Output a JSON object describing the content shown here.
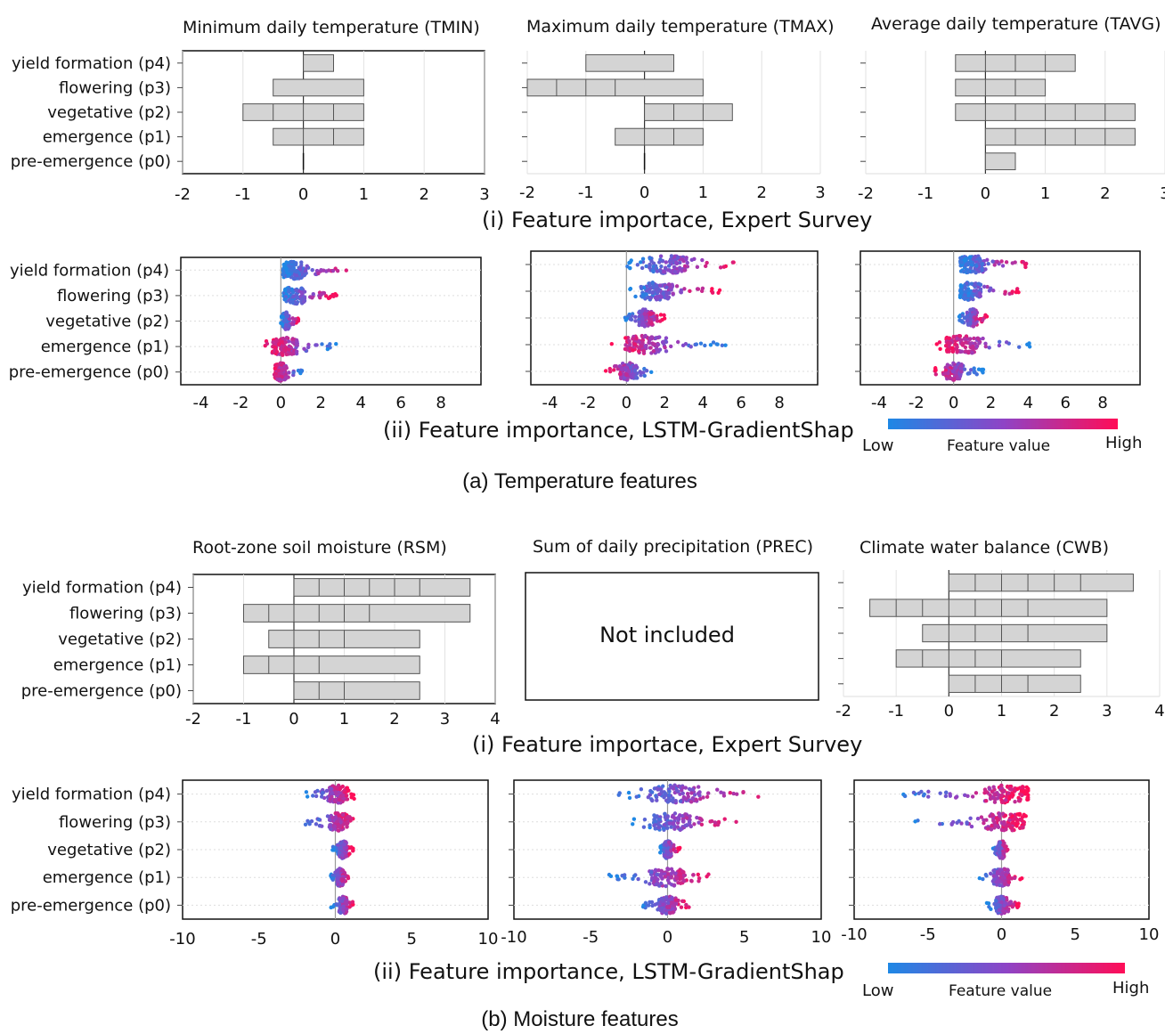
{
  "figure": {
    "sections": [
      {
        "label": "(a) Temperature features",
        "survey_caption": "(i)  Feature importace, Expert Survey",
        "gradient_caption": "(ii)  Feature importance, LSTM-GradientShap",
        "colorbar": {
          "low": "Low",
          "mid": "Feature value",
          "high": "High"
        }
      },
      {
        "label": "(b) Moisture features",
        "survey_caption": "(i)  Feature importace, Expert Survey",
        "gradient_caption": "(ii)  Feature importance, LSTM-GradientShap",
        "colorbar": {
          "low": "Low",
          "mid": "Feature value",
          "high": "High"
        }
      }
    ],
    "categories": [
      "yield formation (p4)",
      "flowering (p3)",
      "vegetative (p2)",
      "emergence (p1)",
      "pre-emergence (p0)"
    ],
    "colors": {
      "low": "#1e88e5",
      "mid": "#8e44c6",
      "high": "#ff0d57",
      "bar": "#d4d4d4"
    }
  },
  "chart_data": [
    {
      "id": "tmin_survey",
      "type": "bar",
      "title": "Minimum daily temperature (TMIN)",
      "xlim": [
        -2,
        3
      ],
      "xticks": [
        -2,
        -1,
        0,
        1,
        2,
        3
      ],
      "series": [
        {
          "values": [
            [
              0,
              0.5
            ],
            [
              -0.5,
              1
            ],
            [
              -1,
              1
            ],
            [
              -0.5,
              1
            ],
            [
              0,
              0
            ]
          ],
          "segments": [
            [
              0.5
            ],
            [
              0.5
            ],
            [
              0.5,
              0.5,
              0.5,
              0.5
            ],
            [
              0.5,
              0.5,
              0.5
            ],
            [
              0
            ]
          ]
        }
      ]
    },
    {
      "id": "tmax_survey",
      "type": "bar",
      "title": "Maximum daily temperature (TMAX)",
      "xlim": [
        -2,
        3
      ],
      "xticks": [
        -2,
        -1,
        0,
        1,
        2,
        3
      ],
      "series": [
        {
          "values": [
            [
              -1,
              0.5
            ],
            [
              -2,
              1
            ],
            [
              0,
              1.5
            ],
            [
              -0.5,
              1
            ],
            [
              0,
              0
            ]
          ],
          "segments": [
            [
              1.5
            ],
            [
              0.5,
              0.5,
              0.5,
              1.5
            ],
            [
              0.5,
              0.5,
              0.5
            ],
            [
              0.5,
              0.5,
              0.5
            ],
            [
              0
            ]
          ]
        }
      ]
    },
    {
      "id": "tavg_survey",
      "type": "bar",
      "title": "Average daily temperature (TAVG)",
      "xlim": [
        -2,
        3
      ],
      "xticks": [
        -2,
        -1,
        0,
        1,
        2,
        3
      ],
      "series": [
        {
          "values": [
            [
              -0.5,
              1.5
            ],
            [
              -0.5,
              1
            ],
            [
              -0.5,
              2.5
            ],
            [
              0,
              2.5
            ],
            [
              0,
              0.5
            ]
          ],
          "segments": [
            [
              0.5,
              0.5,
              0.5,
              0.5
            ],
            [
              0.5,
              0.5,
              0.5
            ],
            [
              0.5,
              0.5,
              0.5,
              0.5,
              0.5,
              0.5
            ],
            [
              0.5,
              0.5,
              0.5,
              0.5,
              0.5
            ],
            [
              0.5
            ]
          ]
        }
      ]
    },
    {
      "id": "tmin_shap",
      "type": "scatter",
      "title": "",
      "xlim": [
        -5,
        10
      ],
      "xticks": [
        -4,
        -2,
        0,
        2,
        4,
        6,
        8
      ],
      "series": [
        {
          "values": [
            [
              0,
              3.5,
              0.7
            ],
            [
              0,
              2.8,
              0.7
            ],
            [
              0,
              0.9,
              0.25
            ],
            [
              -0.8,
              2.8,
              0.2
            ],
            [
              -0.5,
              1.2,
              0.0
            ]
          ]
        }
      ]
    },
    {
      "id": "tmax_shap",
      "type": "scatter",
      "title": "",
      "xlim": [
        -5,
        10
      ],
      "xticks": [
        -4,
        -2,
        0,
        2,
        4,
        6,
        8
      ],
      "series": [
        {
          "values": [
            [
              0,
              5.7,
              2.2
            ],
            [
              0,
              4.9,
              1.6
            ],
            [
              -0.1,
              2.0,
              1.0
            ],
            [
              -1.0,
              5.3,
              1.0
            ],
            [
              -1.2,
              1.5,
              0.1
            ]
          ]
        }
      ]
    },
    {
      "id": "tavg_shap",
      "type": "scatter",
      "title": "",
      "xlim": [
        -5,
        10
      ],
      "xticks": [
        -4,
        -2,
        0,
        2,
        4,
        6,
        8
      ],
      "series": [
        {
          "values": [
            [
              0.3,
              4.0,
              1.0
            ],
            [
              0.3,
              3.5,
              0.9
            ],
            [
              0.3,
              1.8,
              1.0
            ],
            [
              -1.0,
              4.2,
              0.5
            ],
            [
              -1.0,
              1.6,
              0.0
            ]
          ]
        }
      ]
    },
    {
      "id": "rsm_survey",
      "type": "bar",
      "title": "Root-zone soil moisture  (RSM)",
      "xlim": [
        -2,
        4
      ],
      "xticks": [
        -2,
        -1,
        0,
        1,
        2,
        3,
        4
      ],
      "series": [
        {
          "values": [
            [
              0,
              3.5
            ],
            [
              -1,
              3.5
            ],
            [
              -0.5,
              2.5
            ],
            [
              -1,
              2.5
            ],
            [
              0,
              2.5
            ]
          ],
          "segments": [
            [
              0.5,
              0.5,
              0.5,
              0.5,
              0.5,
              0.5
            ],
            [
              0.5,
              0.5,
              0.5,
              0.5,
              0.5,
              0.5
            ],
            [
              0.5,
              0.5,
              0.5,
              0.5
            ],
            [
              0.5,
              0.5,
              0.5,
              0.5
            ],
            [
              0.5,
              0.5,
              0.5
            ]
          ]
        }
      ]
    },
    {
      "id": "prec_survey",
      "type": "table",
      "title": "Sum of daily precipitation  (PREC)",
      "note": "Not included"
    },
    {
      "id": "cwb_survey",
      "type": "bar",
      "title": "Climate water balance (CWB)",
      "xlim": [
        -2,
        4
      ],
      "xticks": [
        -2,
        -1,
        0,
        1,
        2,
        3,
        4
      ],
      "series": [
        {
          "values": [
            [
              0,
              3.5
            ],
            [
              -1.5,
              3
            ],
            [
              -0.5,
              3
            ],
            [
              -1,
              2.5
            ],
            [
              0,
              2.5
            ]
          ],
          "segments": [
            [
              0.5,
              0.5,
              0.5,
              0.5,
              0.5,
              0.5
            ],
            [
              0.5,
              0.5,
              0.5,
              0.5,
              0.5,
              0.5,
              0.5
            ],
            [
              0.5,
              0.5,
              0.5,
              0.5,
              0.5
            ],
            [
              0.5,
              0.5,
              0.5,
              0.5,
              0.5
            ],
            [
              0.5,
              0.5,
              0.5,
              0.5
            ]
          ]
        }
      ]
    },
    {
      "id": "rsm_shap",
      "type": "scatter",
      "title": "",
      "xlim": [
        -10,
        10
      ],
      "xticks": [
        -10,
        -5,
        0,
        5,
        10
      ],
      "series": [
        {
          "values": [
            [
              -2.2,
              1.3,
              0.2
            ],
            [
              -2.2,
              1.3,
              0.2
            ],
            [
              -0.2,
              1.2,
              0.5
            ],
            [
              -0.3,
              0.9,
              0.3
            ],
            [
              -0.3,
              1.2,
              0.5
            ]
          ]
        }
      ]
    },
    {
      "id": "prec_shap",
      "type": "scatter",
      "title": "",
      "xlim": [
        -10,
        10
      ],
      "xticks": [
        -10,
        -5,
        0,
        5,
        10
      ],
      "series": [
        {
          "values": [
            [
              -3.2,
              6.2,
              0.5
            ],
            [
              -2.5,
              4.5,
              0.3
            ],
            [
              -0.5,
              0.8,
              0.0
            ],
            [
              -3.8,
              2.8,
              0.0
            ],
            [
              -1.7,
              1.5,
              0.0
            ]
          ]
        }
      ]
    },
    {
      "id": "cwb_shap",
      "type": "scatter",
      "title": "",
      "xlim": [
        -10,
        10
      ],
      "xticks": [
        -10,
        -5,
        0,
        5,
        10
      ],
      "series": [
        {
          "values": [
            [
              -7.3,
              1.8,
              0.4
            ],
            [
              -6.0,
              1.8,
              0.3
            ],
            [
              -0.6,
              0.5,
              0.0
            ],
            [
              -1.7,
              1.4,
              0.0
            ],
            [
              -1.0,
              1.2,
              0.0
            ]
          ]
        }
      ]
    }
  ]
}
